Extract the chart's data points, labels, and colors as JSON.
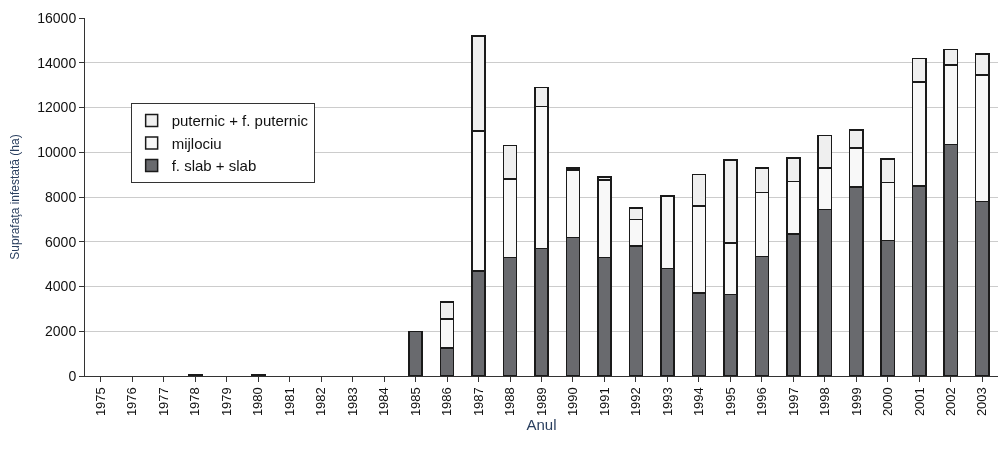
{
  "chart_data": {
    "type": "bar",
    "stacked": true,
    "xlabel": "Anul",
    "ylabel": "Suprafaţa infestată (ha)",
    "categories": [
      "1975",
      "1976",
      "1977",
      "1978",
      "1979",
      "1980",
      "1981",
      "1982",
      "1983",
      "1984",
      "1985",
      "1986",
      "1987",
      "1988",
      "1989",
      "1990",
      "1991",
      "1992",
      "1993",
      "1994",
      "1995",
      "1996",
      "1997",
      "1998",
      "1999",
      "2000",
      "2001",
      "2002",
      "2003"
    ],
    "series": [
      {
        "name": "f. slab + slab",
        "color": "#696a6e",
        "values": [
          null,
          null,
          null,
          60,
          null,
          60,
          null,
          null,
          null,
          null,
          2000,
          1250,
          4700,
          5300,
          5700,
          6200,
          5300,
          5800,
          4800,
          3700,
          3650,
          5350,
          6350,
          7450,
          8450,
          6050,
          8500,
          10350,
          7800
        ]
      },
      {
        "name": "mijlociu",
        "color": "#f8f8f8",
        "values": [
          null,
          null,
          null,
          null,
          null,
          null,
          null,
          null,
          null,
          null,
          null,
          1300,
          6250,
          3500,
          6350,
          3000,
          3450,
          1200,
          3250,
          3900,
          2300,
          2850,
          2350,
          1850,
          1750,
          2600,
          4650,
          3550,
          5650
        ]
      },
      {
        "name": "puternic + f. puternic",
        "color": "#efefef",
        "values": [
          null,
          null,
          null,
          null,
          null,
          null,
          null,
          null,
          null,
          null,
          null,
          750,
          4250,
          1500,
          850,
          100,
          150,
          500,
          null,
          1400,
          3700,
          1100,
          1050,
          1450,
          800,
          1050,
          1050,
          700,
          950
        ]
      }
    ],
    "ylim": [
      0,
      16000
    ],
    "yticks": [
      0,
      2000,
      4000,
      6000,
      8000,
      10000,
      12000,
      14000,
      16000
    ],
    "grid": "y",
    "legend": "left"
  }
}
